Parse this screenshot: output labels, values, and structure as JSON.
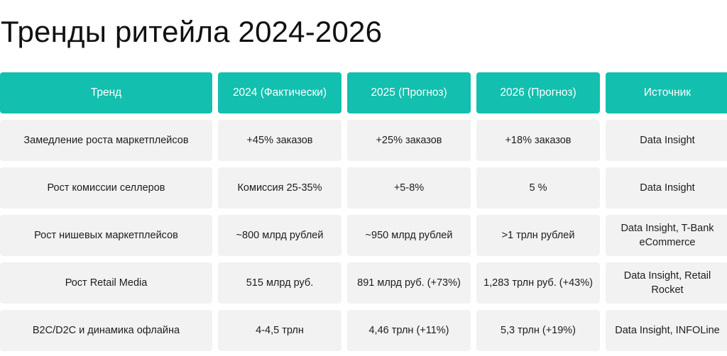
{
  "title": "Тренды ритейла 2024-2026",
  "table": {
    "headers": [
      "Тренд",
      "2024 (Фактически)",
      "2025 (Прогноз)",
      "2026 (Прогноз)",
      "Источник"
    ],
    "rows": [
      [
        "Замедление роста маркетплейсов",
        "+45% заказов",
        "+25% заказов",
        "+18% заказов",
        "Data Insight"
      ],
      [
        "Рост комиссии селлеров",
        "Комиссия 25-35%",
        "+5-8%",
        "5 %",
        "Data Insight"
      ],
      [
        "Рост нишевых маркетплейсов",
        "~800 млрд рублей",
        "~950 млрд рублей",
        ">1 трлн рублей",
        "Data Insight, T-Bank eCommerce"
      ],
      [
        "Рост Retail Media",
        "515 млрд руб.",
        "891 млрд руб. (+73%)",
        "1,283 трлн руб. (+43%)",
        "Data Insight, Retail Rocket"
      ],
      [
        "B2C/D2C и динамика офлайна",
        "4-4,5 трлн",
        "4,46 трлн (+11%)",
        "5,3 трлн (+19%)",
        "Data Insight, INFOLine"
      ]
    ]
  }
}
